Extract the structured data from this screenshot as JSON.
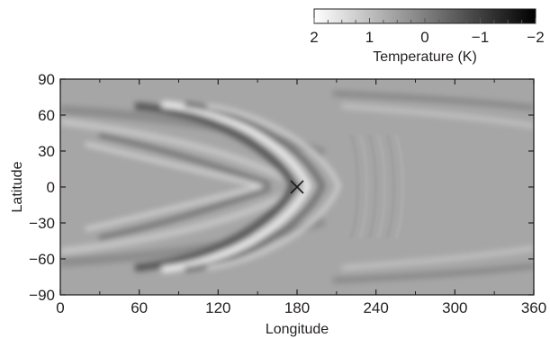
{
  "chart_data": {
    "type": "heatmap",
    "title": "",
    "xlabel": "Longitude",
    "ylabel": "Latitude",
    "xlim": [
      0,
      360
    ],
    "ylim": [
      -90,
      90
    ],
    "x_ticks": [
      "0",
      "60",
      "120",
      "180",
      "240",
      "300",
      "360"
    ],
    "y_ticks": [
      "90",
      "60",
      "30",
      "0",
      "−30",
      "−60",
      "−90"
    ],
    "x_tick_values": [
      0,
      60,
      120,
      180,
      240,
      300,
      360
    ],
    "y_tick_values": [
      90,
      60,
      30,
      0,
      -30,
      -60,
      -90
    ],
    "minor_x_ticks": [
      30,
      90,
      150,
      210,
      270,
      330
    ],
    "colorbar": {
      "label": "Temperature (K)",
      "ticks": [
        "2",
        "1",
        "0",
        "−1",
        "−2"
      ],
      "tick_values": [
        2,
        1,
        0,
        -1,
        -2
      ],
      "range": [
        2,
        -2
      ],
      "colormap": "white-to-black (grayscale, reversed)",
      "orientation": "horizontal",
      "position": "top-right"
    },
    "marker": {
      "symbol": "x",
      "longitude": 180,
      "latitude": 0
    },
    "description_values": {
      "pattern": "chevron-shaped wave fronts centered on the marker, opening toward lower longitudes",
      "min": -2,
      "max": 2
    }
  },
  "colors": {
    "background_gray": "#a6a6a6",
    "axis": "#231f20",
    "colorbar_low": "#ffffff",
    "colorbar_high": "#000000"
  }
}
